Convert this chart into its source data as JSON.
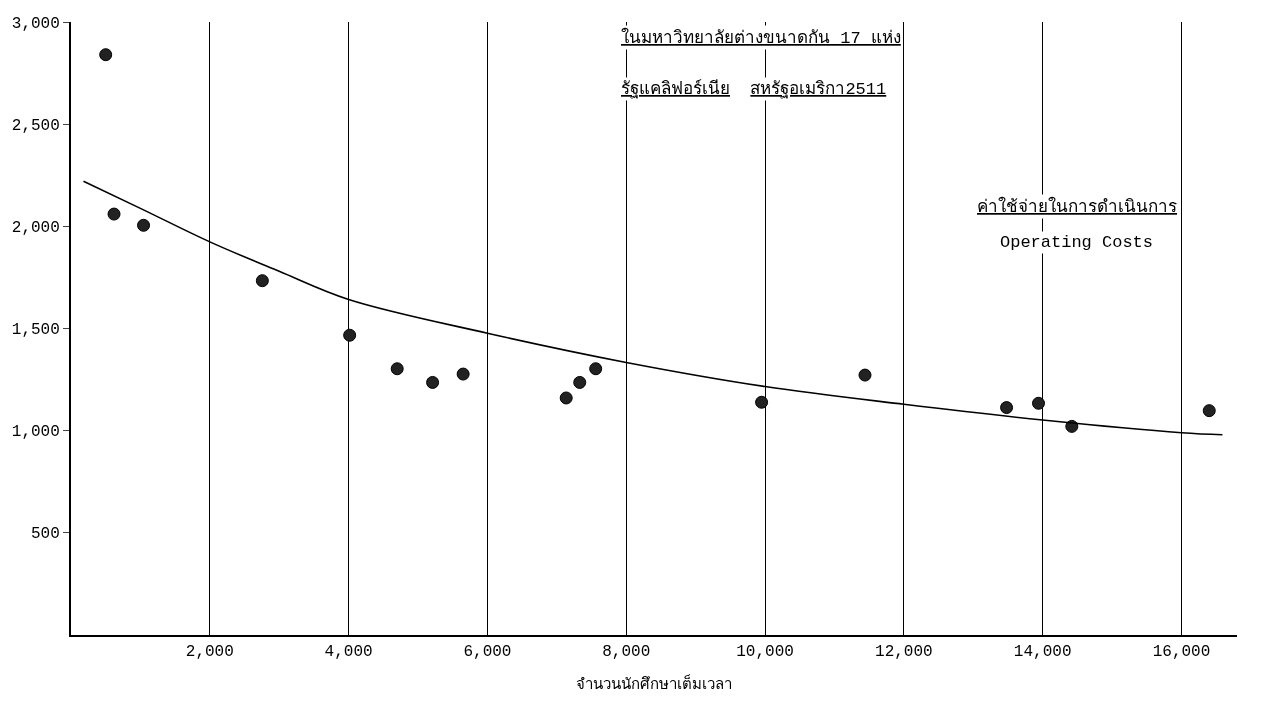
{
  "chart_data": {
    "type": "scatter",
    "title": "ในมหาวิทยาลัยต่างขนาดกัน 17 แห่ง\nรัฐแคลิฟอร์เนีย  สหรัฐอเมริกา2511",
    "xlabel": "จำนวนนักศึกษาเต็มเวลา",
    "annotations": [
      "ค่าใช้จ่ายในการดำเนินการ",
      "Operating Costs"
    ],
    "series": [
      {
        "color": "#222222",
        "marker": "circle",
        "x": [
          500,
          620,
          1045,
          2757,
          4015,
          4700,
          5210,
          5650,
          7135,
          7330,
          7560,
          9950,
          11440,
          13480,
          13940,
          14420,
          16400
        ],
        "values": [
          2840,
          2060,
          2005,
          1734,
          1467,
          1303,
          1236,
          1277,
          1160,
          1236,
          1303,
          1139,
          1272,
          1113,
          1134,
          1021,
          1098
        ]
      },
      {
        "type": "line",
        "color": "#000000",
        "marker": "none",
        "line_style": "solid",
        "x": [
          180,
          1000,
          2000,
          3000,
          4000,
          6000,
          8000,
          10000,
          12000,
          14000,
          16000,
          16590
        ],
        "values": [
          2221,
          2088,
          1924,
          1780,
          1642,
          1477,
          1334,
          1216,
          1129,
          1052,
          990,
          980
        ]
      }
    ],
    "xlim": [
      0,
      16800
    ],
    "xticks": [
      {
        "value": 2000,
        "label": "2,000"
      },
      {
        "value": 4000,
        "label": "4,000"
      },
      {
        "value": 6000,
        "label": "6,000"
      },
      {
        "value": 8000,
        "label": "8,000"
      },
      {
        "value": 10000,
        "label": "10,000"
      },
      {
        "value": 12000,
        "label": "12,000"
      },
      {
        "value": 14000,
        "label": "14,000"
      },
      {
        "value": 16000,
        "label": "16,000"
      }
    ],
    "ylim": [
      0,
      3000
    ],
    "yticks": [
      {
        "value": 500,
        "label": "500"
      },
      {
        "value": 1000,
        "label": "1,000"
      },
      {
        "value": 1500,
        "label": "1,500"
      },
      {
        "value": 2000,
        "label": "2,000"
      },
      {
        "value": 2500,
        "label": "2,500"
      },
      {
        "value": 3000,
        "label": "3,000"
      }
    ],
    "grid": "x"
  }
}
